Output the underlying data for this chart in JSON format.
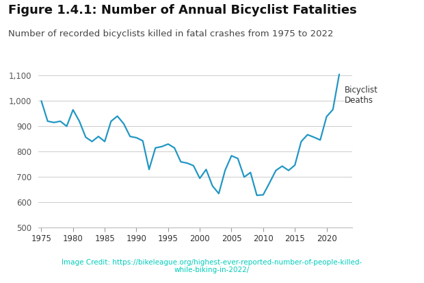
{
  "title": "Figure 1.4.1: Number of Annual Bicyclist Fatalities",
  "subtitle": "Number of recorded bicyclists killed in fatal crashes from 1975 to 2022",
  "line_color": "#2196c4",
  "background_color": "#ffffff",
  "footer_bg_color": "#000000",
  "footer_text_color": "#00ccbb",
  "footer_text": "Image Credit: https://bikeleague.org/highest-ever-reported-number-of-people-killed-\nwhile-biking-in-2022/",
  "legend_label": "Bicyclist\nDeaths",
  "years": [
    1975,
    1976,
    1977,
    1978,
    1979,
    1980,
    1981,
    1982,
    1983,
    1984,
    1985,
    1986,
    1987,
    1988,
    1989,
    1990,
    1991,
    1992,
    1993,
    1994,
    1995,
    1996,
    1997,
    1998,
    1999,
    2000,
    2001,
    2002,
    2003,
    2004,
    2005,
    2006,
    2007,
    2008,
    2009,
    2010,
    2011,
    2012,
    2013,
    2014,
    2015,
    2016,
    2017,
    2018,
    2019,
    2020,
    2021,
    2022
  ],
  "deaths": [
    1000,
    920,
    915,
    920,
    900,
    965,
    920,
    857,
    840,
    860,
    840,
    920,
    940,
    910,
    860,
    855,
    843,
    730,
    815,
    820,
    830,
    815,
    760,
    755,
    745,
    695,
    730,
    665,
    635,
    727,
    784,
    773,
    700,
    718,
    628,
    630,
    677,
    726,
    743,
    726,
    747,
    840,
    867,
    857,
    846,
    938,
    966,
    1105
  ],
  "ylim": [
    500,
    1130
  ],
  "xlim": [
    1974.5,
    2024
  ],
  "yticks": [
    500,
    600,
    700,
    800,
    900,
    1000,
    1100
  ],
  "xticks": [
    1975,
    1980,
    1985,
    1990,
    1995,
    2000,
    2005,
    2010,
    2015,
    2020
  ],
  "title_fontsize": 13,
  "subtitle_fontsize": 9.5,
  "tick_fontsize": 8.5,
  "line_width": 1.6,
  "footer_fontsize": 7.5
}
